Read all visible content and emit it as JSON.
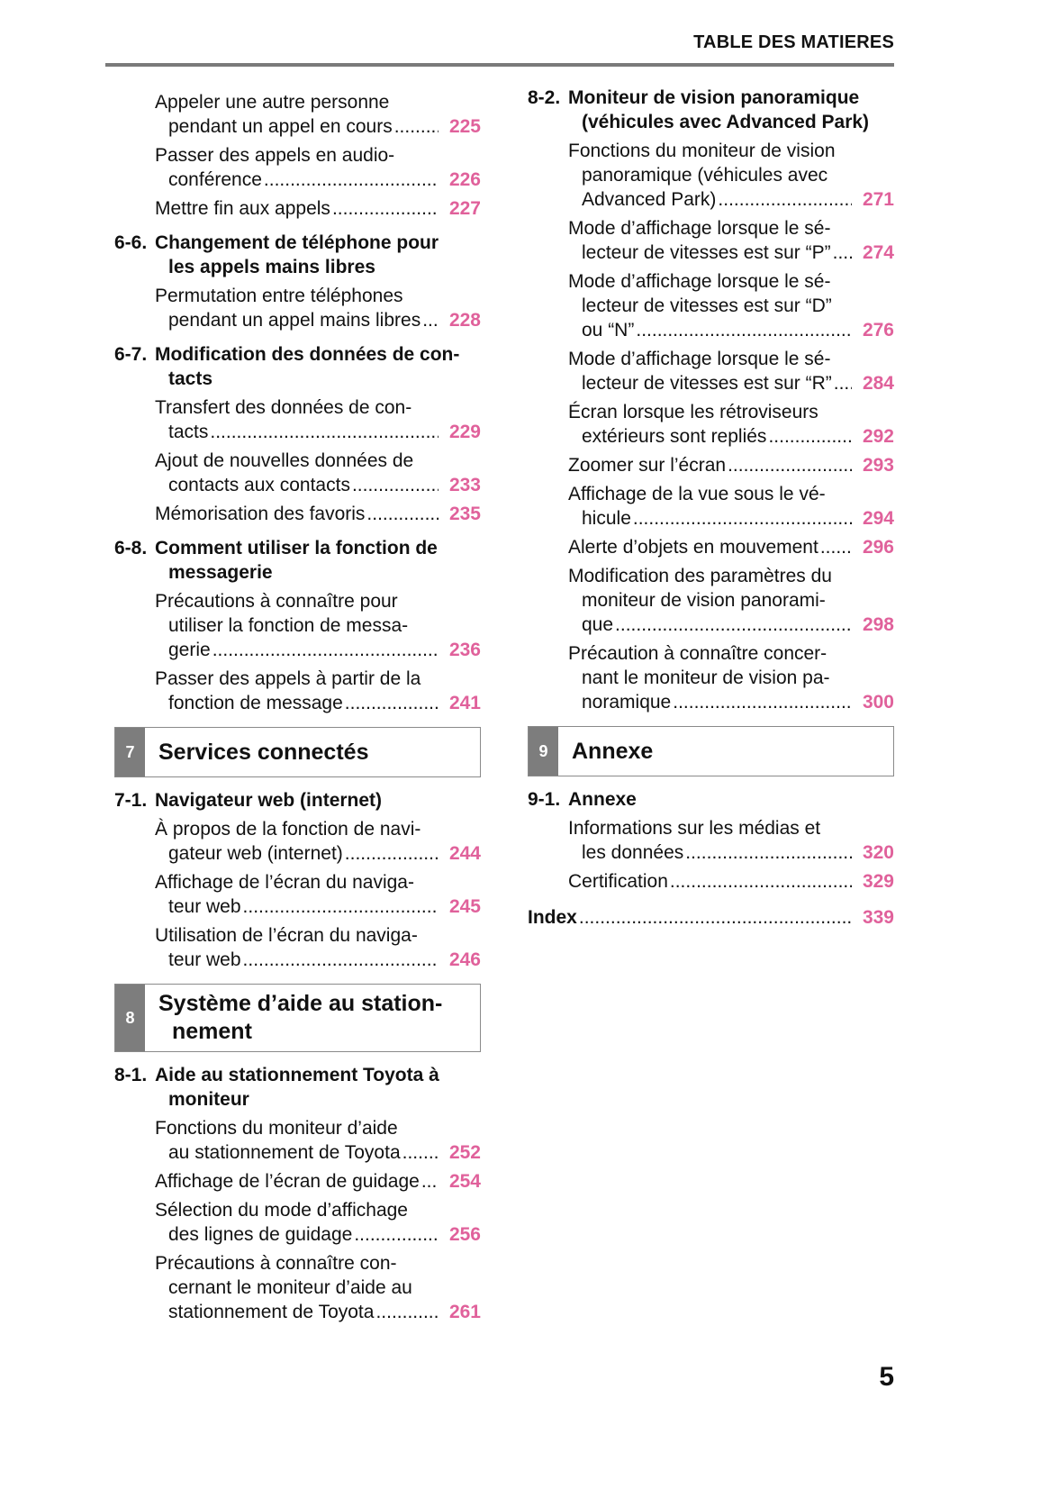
{
  "header": {
    "title": "TABLE DES MATIERES"
  },
  "page_number": "5",
  "colors": {
    "page_ref": "#e0619b",
    "section_badge": "#7d7d7d",
    "rule": "#7a7a7a"
  },
  "columns": [
    {
      "items": [
        {
          "type": "entry",
          "lines": [
            "Appeler une autre personne",
            "pendant un appel en cours"
          ],
          "page": "225"
        },
        {
          "type": "entry",
          "lines": [
            "Passer des appels en audio-",
            "conférence"
          ],
          "page": "226"
        },
        {
          "type": "entry",
          "lines": [
            "Mettre fin aux appels"
          ],
          "page": "227"
        },
        {
          "type": "heading",
          "num": "6-6.",
          "lines": [
            "Changement de téléphone pour",
            "les appels mains libres"
          ]
        },
        {
          "type": "entry",
          "lines": [
            "Permutation entre téléphones",
            "pendant un appel mains libres"
          ],
          "page": "228"
        },
        {
          "type": "heading",
          "num": "6-7.",
          "lines": [
            "Modification des données de con-",
            "tacts"
          ]
        },
        {
          "type": "entry",
          "lines": [
            "Transfert des données de con-",
            "tacts"
          ],
          "page": "229"
        },
        {
          "type": "entry",
          "lines": [
            "Ajout de nouvelles données de",
            "contacts aux contacts"
          ],
          "page": "233"
        },
        {
          "type": "entry",
          "lines": [
            "Mémorisation des favoris"
          ],
          "page": "235"
        },
        {
          "type": "heading",
          "num": "6-8.",
          "lines": [
            "Comment utiliser la fonction de",
            "messagerie"
          ]
        },
        {
          "type": "entry",
          "lines": [
            "Précautions à connaître pour",
            "utiliser la fonction de messa-",
            "gerie"
          ],
          "page": "236"
        },
        {
          "type": "entry",
          "lines": [
            "Passer des appels à partir de la",
            "fonction de message"
          ],
          "page": "241"
        },
        {
          "type": "section",
          "num": "7",
          "lines": [
            "Services connectés"
          ]
        },
        {
          "type": "heading",
          "num": "7-1.",
          "lines": [
            "Navigateur web (internet)"
          ]
        },
        {
          "type": "entry",
          "lines": [
            "À propos de la fonction de navi-",
            "gateur web (internet)"
          ],
          "page": "244"
        },
        {
          "type": "entry",
          "lines": [
            "Affichage de l’écran du naviga-",
            "teur web"
          ],
          "page": "245"
        },
        {
          "type": "entry",
          "lines": [
            "Utilisation de l’écran du naviga-",
            "teur web"
          ],
          "page": "246"
        },
        {
          "type": "section",
          "num": "8",
          "lines": [
            "Système d’aide au station-",
            "nement"
          ]
        },
        {
          "type": "heading",
          "num": "8-1.",
          "lines": [
            "Aide au stationnement Toyota à",
            "moniteur"
          ]
        },
        {
          "type": "entry",
          "lines": [
            "Fonctions du moniteur d’aide",
            "au stationnement de Toyota"
          ],
          "page": "252"
        },
        {
          "type": "entry",
          "lines": [
            "Affichage de l’écran de guidage"
          ],
          "page": "254"
        },
        {
          "type": "entry",
          "lines": [
            "Sélection du mode d’affichage",
            "des lignes de guidage"
          ],
          "page": "256"
        },
        {
          "type": "entry",
          "lines": [
            "Précautions à connaître con-",
            "cernant le moniteur d’aide au",
            "stationnement de Toyota"
          ],
          "page": "261"
        }
      ]
    },
    {
      "items": [
        {
          "type": "heading",
          "num": "8-2.",
          "lines": [
            "Moniteur de vision panoramique",
            "(véhicules avec Advanced Park)"
          ]
        },
        {
          "type": "entry",
          "lines": [
            "Fonctions du moniteur de vision",
            "panoramique (véhicules avec",
            "Advanced Park)"
          ],
          "page": "271"
        },
        {
          "type": "entry",
          "lines": [
            "Mode d’affichage lorsque le sé-",
            "lecteur de vitesses est sur “P”"
          ],
          "page": "274"
        },
        {
          "type": "entry",
          "lines": [
            "Mode d’affichage lorsque le sé-",
            "lecteur de vitesses est sur “D”",
            "ou “N”"
          ],
          "page": "276"
        },
        {
          "type": "entry",
          "lines": [
            "Mode d’affichage lorsque le sé-",
            "lecteur de vitesses est sur “R”"
          ],
          "page": "284"
        },
        {
          "type": "entry",
          "lines": [
            "Écran lorsque les rétroviseurs",
            "extérieurs sont repliés"
          ],
          "page": "292"
        },
        {
          "type": "entry",
          "lines": [
            "Zoomer sur l’écran"
          ],
          "page": "293"
        },
        {
          "type": "entry",
          "lines": [
            "Affichage de la vue sous le vé-",
            "hicule"
          ],
          "page": "294"
        },
        {
          "type": "entry",
          "lines": [
            "Alerte d’objets en mouvement"
          ],
          "page": "296"
        },
        {
          "type": "entry",
          "lines": [
            "Modification des paramètres du",
            "moniteur de vision panorami-",
            "que"
          ],
          "page": "298"
        },
        {
          "type": "entry",
          "lines": [
            "Précaution à connaître concer-",
            "nant le moniteur de vision pa-",
            "noramique"
          ],
          "page": "300"
        },
        {
          "type": "section",
          "num": "9",
          "lines": [
            "Annexe"
          ]
        },
        {
          "type": "heading",
          "num": "9-1.",
          "lines": [
            "Annexe"
          ]
        },
        {
          "type": "entry",
          "lines": [
            "Informations sur les médias et",
            "les données"
          ],
          "page": "320"
        },
        {
          "type": "entry",
          "lines": [
            "Certification"
          ],
          "page": "329"
        },
        {
          "type": "index",
          "lines": [
            "Index"
          ],
          "page": "339"
        }
      ]
    }
  ]
}
